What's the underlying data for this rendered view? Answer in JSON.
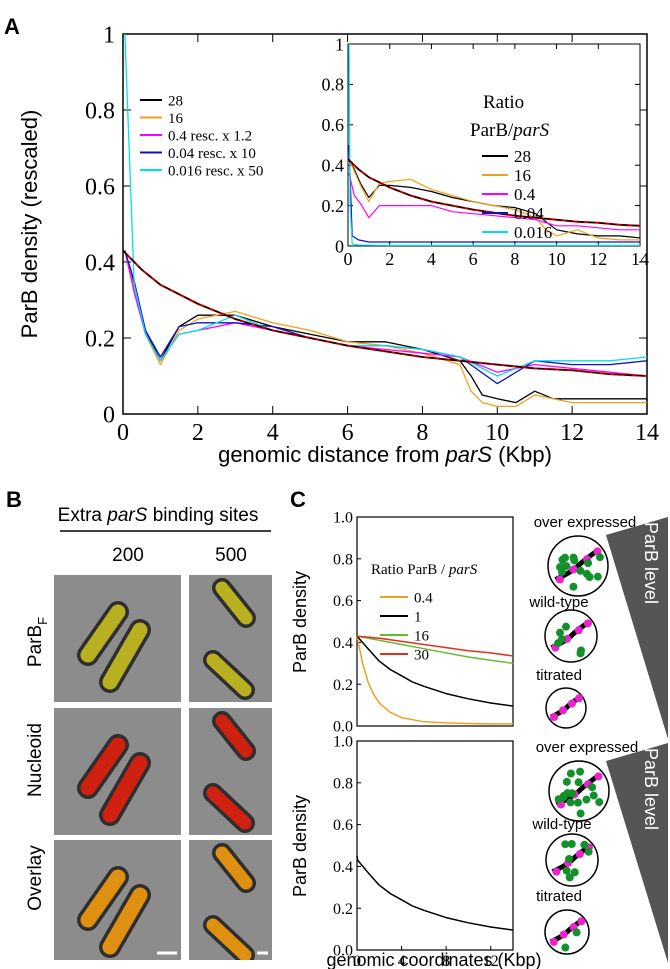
{
  "panels": {
    "a": "A",
    "b": "B",
    "c": "C"
  },
  "chart_data": [
    {
      "id": "A-main",
      "type": "line",
      "ylabel": "ParB density (rescaled)",
      "xlabel_prefix": "genomic distance from ",
      "xlabel_italic": "parS",
      "xlabel_suffix": " (Kbp)",
      "xlim": [
        0,
        14
      ],
      "ylim": [
        0,
        1
      ],
      "xticks": [
        0,
        2,
        4,
        6,
        8,
        10,
        12,
        14
      ],
      "yticks": [
        0,
        0.2,
        0.4,
        0.6,
        0.8,
        1
      ],
      "ytick_labels": [
        "0",
        "0.2",
        "0.4",
        "0.6",
        "0.8",
        "1"
      ],
      "legend_position": "upper-left",
      "series": [
        {
          "name": "28",
          "color": "#000000",
          "x": [
            0.05,
            0.3,
            0.6,
            1.0,
            1.5,
            2,
            3,
            4,
            5,
            6,
            7,
            8,
            9,
            9.3,
            9.6,
            10,
            10.5,
            11,
            11.5,
            12,
            13,
            14
          ],
          "values": [
            0.43,
            0.34,
            0.22,
            0.14,
            0.23,
            0.26,
            0.26,
            0.23,
            0.21,
            0.19,
            0.19,
            0.17,
            0.14,
            0.1,
            0.05,
            0.04,
            0.03,
            0.06,
            0.04,
            0.04,
            0.04,
            0.04
          ]
        },
        {
          "name": "16",
          "color": "#f0a020",
          "x": [
            0.05,
            0.3,
            0.6,
            1.0,
            1.5,
            2,
            3,
            4,
            5,
            6,
            7,
            8,
            9,
            9.3,
            9.6,
            10,
            10.5,
            11,
            11.5,
            12,
            13,
            14
          ],
          "values": [
            0.43,
            0.33,
            0.21,
            0.13,
            0.22,
            0.25,
            0.27,
            0.24,
            0.22,
            0.19,
            0.18,
            0.16,
            0.13,
            0.06,
            0.03,
            0.02,
            0.02,
            0.05,
            0.04,
            0.03,
            0.03,
            0.03
          ]
        },
        {
          "name": "0.4  resc. x 1.2",
          "color": "#ff00ff",
          "x": [
            0.05,
            0.3,
            0.6,
            1.0,
            1.5,
            2,
            3,
            4,
            5,
            6,
            7,
            8,
            9,
            10,
            11,
            12,
            13,
            14
          ],
          "values": [
            0.43,
            0.32,
            0.21,
            0.14,
            0.21,
            0.22,
            0.24,
            0.22,
            0.2,
            0.18,
            0.17,
            0.16,
            0.15,
            0.11,
            0.13,
            0.12,
            0.11,
            0.1
          ]
        },
        {
          "name": "0.04 resc.  x 10",
          "color": "#1010c0",
          "x": [
            0.05,
            0.3,
            0.6,
            1.0,
            1.5,
            2,
            3,
            4,
            5,
            6,
            7,
            8,
            9,
            10,
            11,
            12,
            13,
            14
          ],
          "values": [
            0.43,
            0.35,
            0.22,
            0.15,
            0.23,
            0.24,
            0.24,
            0.23,
            0.2,
            0.18,
            0.18,
            0.17,
            0.15,
            0.08,
            0.14,
            0.13,
            0.13,
            0.14
          ]
        },
        {
          "name": "0.016 resc. x 50",
          "color": "#00e0f0",
          "x": [
            0.05,
            0.3,
            0.6,
            1.0,
            1.5,
            2,
            3,
            4,
            5,
            6,
            7,
            8,
            9,
            10,
            11,
            12,
            13,
            14
          ],
          "values": [
            1.0,
            0.34,
            0.21,
            0.14,
            0.21,
            0.22,
            0.26,
            0.22,
            0.2,
            0.18,
            0.18,
            0.17,
            0.15,
            0.1,
            0.14,
            0.14,
            0.14,
            0.15
          ]
        }
      ],
      "fit": {
        "color": "#c00000",
        "x": [
          0,
          0.5,
          1,
          2,
          3,
          4,
          5,
          6,
          7,
          8,
          9,
          10,
          11,
          12,
          13,
          14
        ],
        "values": [
          0.43,
          0.38,
          0.34,
          0.29,
          0.25,
          0.22,
          0.2,
          0.18,
          0.165,
          0.15,
          0.14,
          0.13,
          0.12,
          0.115,
          0.105,
          0.1
        ]
      }
    },
    {
      "id": "A-inset",
      "type": "line",
      "legend_title": "Ratio",
      "legend_title2_prefix": "ParB/",
      "legend_title2_italic": "parS",
      "xlim": [
        0,
        14
      ],
      "ylim": [
        0,
        1
      ],
      "xticks": [
        0,
        2,
        4,
        6,
        8,
        10,
        12,
        14
      ],
      "yticks": [
        0,
        0.2,
        0.4,
        0.6,
        0.8,
        1
      ],
      "ytick_labels": [
        "0",
        "0.2",
        "0.4",
        "0.6",
        "0.8",
        "1"
      ],
      "series": [
        {
          "name": "28",
          "color": "#000000",
          "x": [
            0.05,
            0.3,
            0.6,
            1,
            1.5,
            2,
            3,
            4,
            5,
            6,
            7,
            8,
            9,
            9.5,
            10,
            11,
            12,
            13,
            14
          ],
          "values": [
            0.43,
            0.38,
            0.31,
            0.24,
            0.3,
            0.3,
            0.29,
            0.27,
            0.24,
            0.22,
            0.2,
            0.19,
            0.16,
            0.12,
            0.08,
            0.06,
            0.05,
            0.05,
            0.04
          ]
        },
        {
          "name": "16",
          "color": "#f0a020",
          "x": [
            0.05,
            0.3,
            0.6,
            1,
            1.5,
            2,
            3,
            4,
            5,
            6,
            7,
            8,
            9,
            9.5,
            10,
            11,
            12,
            13,
            14
          ],
          "values": [
            0.43,
            0.37,
            0.3,
            0.22,
            0.31,
            0.32,
            0.33,
            0.28,
            0.25,
            0.22,
            0.2,
            0.18,
            0.14,
            0.08,
            0.05,
            0.08,
            0.04,
            0.03,
            0.03
          ]
        },
        {
          "name": "0.4",
          "color": "#ff00ff",
          "x": [
            0.05,
            0.3,
            0.6,
            1,
            1.5,
            2,
            3,
            4,
            5,
            6,
            7,
            8,
            9,
            10,
            11,
            12,
            13,
            14
          ],
          "values": [
            0.36,
            0.25,
            0.21,
            0.14,
            0.2,
            0.2,
            0.2,
            0.2,
            0.17,
            0.16,
            0.15,
            0.14,
            0.13,
            0.1,
            0.1,
            0.09,
            0.08,
            0.08
          ]
        },
        {
          "name": "0.04",
          "color": "#1010c0",
          "x": [
            0.05,
            0.2,
            0.5,
            1,
            2,
            4,
            6,
            8,
            10,
            12,
            14
          ],
          "values": [
            0.5,
            0.05,
            0.03,
            0.02,
            0.02,
            0.02,
            0.02,
            0.02,
            0.02,
            0.02,
            0.02
          ]
        },
        {
          "name": "0.016",
          "color": "#00e0f0",
          "x": [
            0.05,
            0.1,
            0.2,
            0.5,
            1,
            2,
            4,
            6,
            8,
            10,
            12,
            14
          ],
          "values": [
            1.0,
            0.2,
            0.01,
            0.005,
            0.004,
            0.003,
            0.003,
            0.003,
            0.003,
            0.003,
            0.003,
            0.003
          ]
        }
      ],
      "fit": {
        "color": "#c00000",
        "x": [
          0,
          0.5,
          1,
          2,
          3,
          4,
          5,
          6,
          7,
          8,
          9,
          10,
          11,
          12,
          13,
          14
        ],
        "values": [
          0.43,
          0.38,
          0.34,
          0.29,
          0.25,
          0.22,
          0.2,
          0.18,
          0.165,
          0.15,
          0.14,
          0.13,
          0.12,
          0.115,
          0.105,
          0.1
        ]
      }
    },
    {
      "id": "C-top",
      "type": "line",
      "ylabel": "ParB density",
      "legend_title_prefix": "Ratio ParB / ",
      "legend_title_italic": "parS",
      "xlim": [
        0,
        14
      ],
      "ylim": [
        0,
        1
      ],
      "yticks": [
        0,
        0.2,
        0.4,
        0.6,
        0.8,
        1
      ],
      "ytick_labels": [
        "0.0",
        "0.2",
        "0.4",
        "0.6",
        "0.8",
        "1.0"
      ],
      "series": [
        {
          "name": "0.4",
          "color": "#f0a020",
          "x": [
            0,
            0.5,
            1,
            1.5,
            2,
            3,
            4,
            5,
            6,
            8,
            10,
            12,
            14
          ],
          "values": [
            0.43,
            0.3,
            0.21,
            0.15,
            0.11,
            0.065,
            0.04,
            0.03,
            0.02,
            0.015,
            0.012,
            0.01,
            0.01
          ]
        },
        {
          "name": "1",
          "color": "#000000",
          "x": [
            0,
            1,
            2,
            3,
            4,
            5,
            6,
            8,
            10,
            12,
            14
          ],
          "values": [
            0.43,
            0.37,
            0.31,
            0.27,
            0.24,
            0.21,
            0.19,
            0.155,
            0.13,
            0.11,
            0.095
          ]
        },
        {
          "name": "16",
          "color": "#66bb33",
          "x": [
            0,
            2,
            4,
            6,
            8,
            10,
            12,
            14
          ],
          "values": [
            0.43,
            0.41,
            0.39,
            0.37,
            0.35,
            0.33,
            0.315,
            0.3
          ]
        },
        {
          "name": "30",
          "color": "#e03020",
          "x": [
            0,
            2,
            4,
            6,
            8,
            10,
            12,
            14
          ],
          "values": [
            0.43,
            0.42,
            0.405,
            0.39,
            0.375,
            0.36,
            0.35,
            0.335
          ]
        }
      ]
    },
    {
      "id": "C-bottom",
      "type": "line",
      "ylabel": "ParB density",
      "xlabel": "genomic coordinates (Kbp)",
      "xlim": [
        0,
        14
      ],
      "ylim": [
        0,
        1
      ],
      "xticks": [
        0,
        4,
        8,
        12
      ],
      "yticks": [
        0,
        0.2,
        0.4,
        0.6,
        0.8,
        1
      ],
      "ytick_labels": [
        "0.0",
        "0.2",
        "0.4",
        "0.6",
        "0.8",
        "1.0"
      ],
      "series": [
        {
          "color": "#000000",
          "x": [
            0,
            0.05,
            1,
            2,
            3,
            4,
            5,
            6,
            8,
            10,
            12,
            14
          ],
          "values": [
            0.45,
            0.43,
            0.37,
            0.31,
            0.27,
            0.24,
            0.21,
            0.19,
            0.155,
            0.13,
            0.11,
            0.095
          ]
        }
      ]
    }
  ],
  "panel_b": {
    "header_prefix": "Extra ",
    "header_italic": "parS",
    "header_suffix": " binding sites",
    "columns": [
      "200",
      "500"
    ],
    "rows": [
      {
        "label": "ParB",
        "sub": "F"
      },
      {
        "label": "Nucleoid",
        "sub": ""
      },
      {
        "label": "Overlay",
        "sub": ""
      }
    ]
  },
  "schematics": {
    "top": [
      "over expressed",
      "wild-type",
      "titrated"
    ],
    "bottom": [
      "over expressed",
      "wild-type",
      "titrated"
    ],
    "wedge_label": "ParB level"
  },
  "colors": {
    "dot_green": "#12902a",
    "dna_pink": "#ee22cc",
    "wedge": "#555555"
  }
}
